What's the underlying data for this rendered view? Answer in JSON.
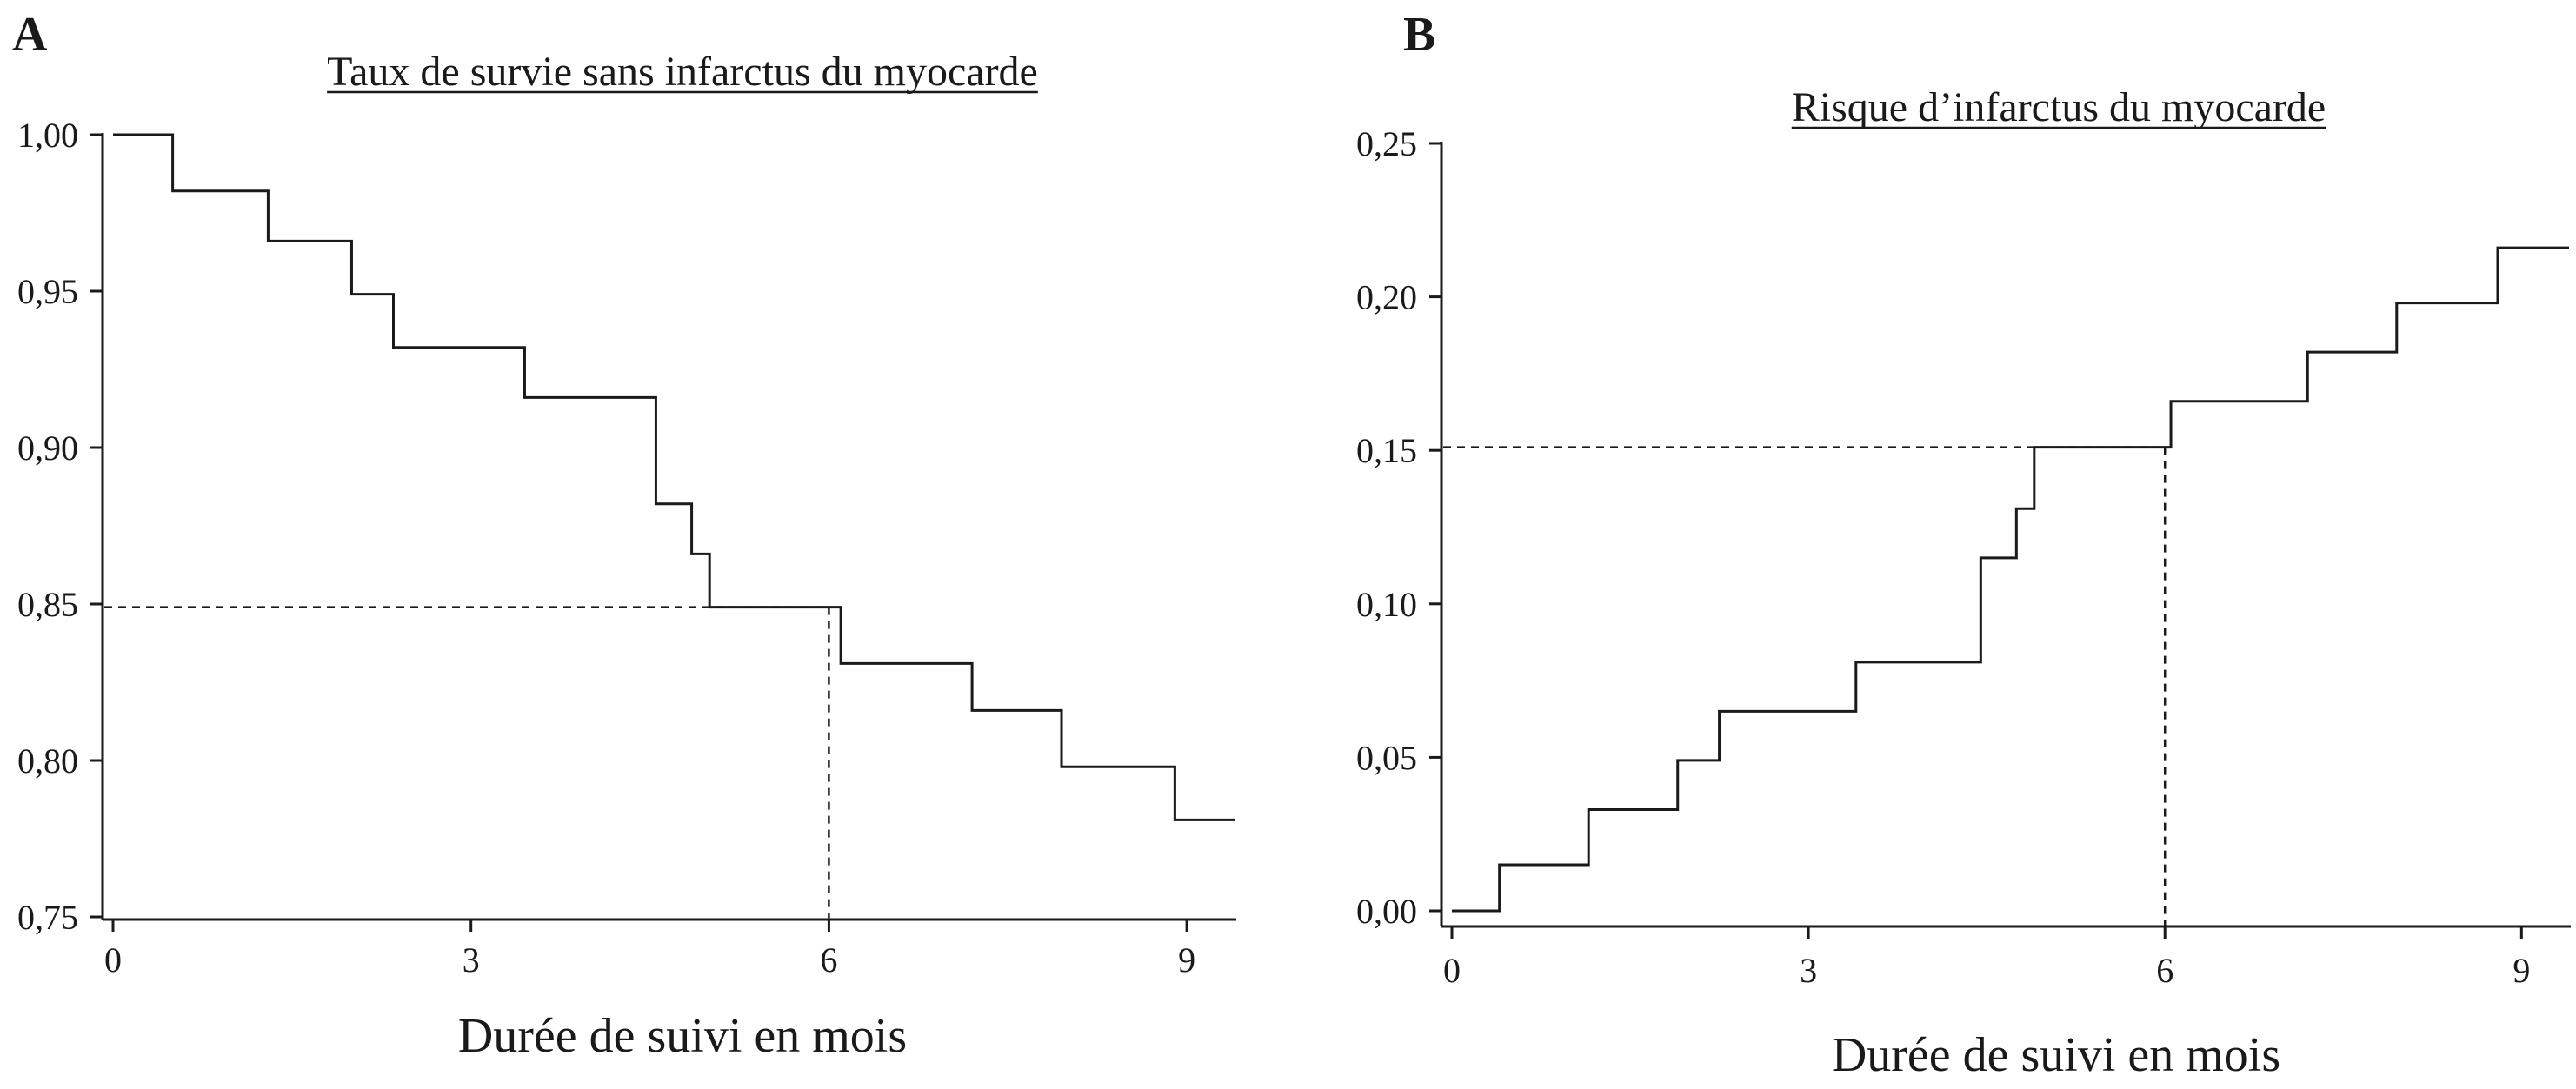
{
  "chart_data": [
    {
      "type": "line",
      "panel": "A",
      "title": "Taux de survie sans infarctus du myocarde",
      "xlabel": "Durée de suivi en mois",
      "ylabel": "",
      "xlim": [
        0,
        9.4
      ],
      "ylim": [
        0.75,
        1.0
      ],
      "xticks": [
        0,
        3,
        6,
        9
      ],
      "xtick_labels": [
        "0",
        "3",
        "6",
        "9"
      ],
      "yticks": [
        0.75,
        0.8,
        0.85,
        0.9,
        0.95,
        1.0
      ],
      "ytick_labels": [
        "0,75",
        "0,80",
        "0,85",
        "0,90",
        "0,95",
        "1,00"
      ],
      "grid": false,
      "step": true,
      "series": [
        {
          "x": [
            0,
            0.5,
            1.3,
            2.0,
            2.35,
            3.45,
            4.55,
            4.85,
            5.0,
            6.1,
            7.2,
            7.95,
            8.9,
            9.4
          ],
          "y": [
            1.0,
            0.982,
            0.966,
            0.949,
            0.932,
            0.916,
            0.882,
            0.866,
            0.849,
            0.831,
            0.816,
            0.798,
            0.781,
            0.781
          ]
        }
      ],
      "reference": {
        "x": 6,
        "y": 0.849
      }
    },
    {
      "type": "line",
      "panel": "B",
      "title": "Risque d’infarctus du myocarde",
      "xlabel": "Durée de suivi en mois",
      "ylabel": "",
      "xlim": [
        0,
        9.4
      ],
      "ylim": [
        0.0,
        0.25
      ],
      "xticks": [
        0,
        3,
        6,
        9
      ],
      "xtick_labels": [
        "0",
        "3",
        "6",
        "9"
      ],
      "yticks": [
        0.0,
        0.05,
        0.1,
        0.15,
        0.2,
        0.25
      ],
      "ytick_labels": [
        "0,00",
        "0,05",
        "0,10",
        "0,15",
        "0,20",
        "0,25"
      ],
      "grid": false,
      "step": true,
      "series": [
        {
          "x": [
            0,
            0.4,
            1.15,
            1.9,
            2.25,
            3.4,
            4.45,
            4.75,
            4.9,
            6.05,
            7.2,
            7.95,
            8.8,
            9.4
          ],
          "y": [
            0.0,
            0.015,
            0.033,
            0.049,
            0.065,
            0.081,
            0.115,
            0.131,
            0.151,
            0.166,
            0.182,
            0.198,
            0.216,
            0.216
          ]
        }
      ],
      "reference": {
        "x": 6,
        "y": 0.151
      }
    }
  ]
}
